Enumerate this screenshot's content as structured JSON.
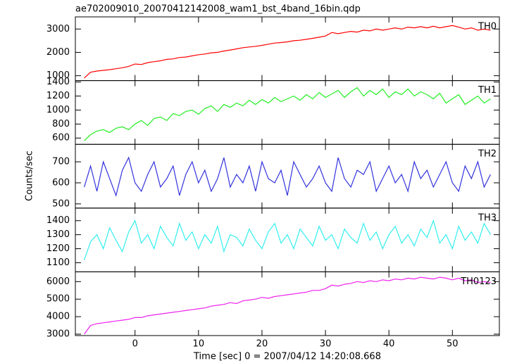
{
  "chart_data": [
    {
      "type": "line",
      "title": "ae702009010_20070412142008_wam1_bst_4band_16bin.qdp",
      "label": "TH0",
      "color": "#ff0000",
      "x": [
        -8,
        -7,
        -6,
        -5,
        -4,
        -3,
        -2,
        -1,
        0,
        1,
        2,
        3,
        4,
        5,
        6,
        7,
        8,
        9,
        10,
        11,
        12,
        13,
        14,
        15,
        16,
        17,
        18,
        19,
        20,
        21,
        22,
        23,
        24,
        25,
        26,
        27,
        28,
        29,
        30,
        31,
        32,
        33,
        34,
        35,
        36,
        37,
        38,
        39,
        40,
        41,
        42,
        43,
        44,
        45,
        46,
        47,
        48,
        49,
        50,
        51,
        52,
        53,
        54,
        55,
        56
      ],
      "values": [
        900,
        1150,
        1200,
        1230,
        1260,
        1300,
        1340,
        1400,
        1500,
        1480,
        1560,
        1600,
        1640,
        1700,
        1720,
        1780,
        1800,
        1850,
        1900,
        1930,
        1980,
        2000,
        2060,
        2100,
        2150,
        2200,
        2230,
        2260,
        2300,
        2350,
        2400,
        2420,
        2450,
        2500,
        2520,
        2560,
        2600,
        2650,
        2700,
        2850,
        2800,
        2850,
        2900,
        2870,
        2950,
        2920,
        3000,
        2950,
        3000,
        3050,
        3000,
        3080,
        3050,
        3100,
        3050,
        3120,
        3050,
        3100,
        3150,
        3080,
        3000,
        3050,
        2950,
        3000,
        2950
      ],
      "xlim": [
        -9.4,
        57.4
      ],
      "xticks": [
        0,
        10,
        20,
        30,
        40,
        50
      ],
      "ylim": [
        790,
        3520
      ],
      "yticks": [
        1000,
        2000,
        3000
      ]
    },
    {
      "type": "line",
      "label": "TH1",
      "color": "#22ee22",
      "x": [
        -8,
        -7,
        -6,
        -5,
        -4,
        -3,
        -2,
        -1,
        0,
        1,
        2,
        3,
        4,
        5,
        6,
        7,
        8,
        9,
        10,
        11,
        12,
        13,
        14,
        15,
        16,
        17,
        18,
        19,
        20,
        21,
        22,
        23,
        24,
        25,
        26,
        27,
        28,
        29,
        30,
        31,
        32,
        33,
        34,
        35,
        36,
        37,
        38,
        39,
        40,
        41,
        42,
        43,
        44,
        45,
        46,
        47,
        48,
        49,
        50,
        51,
        52,
        53,
        54,
        55,
        56
      ],
      "values": [
        560,
        650,
        700,
        720,
        680,
        740,
        760,
        720,
        800,
        850,
        780,
        880,
        900,
        850,
        950,
        920,
        980,
        1000,
        940,
        1020,
        1060,
        980,
        1080,
        1040,
        1100,
        1060,
        1140,
        1080,
        1150,
        1100,
        1180,
        1120,
        1160,
        1200,
        1140,
        1220,
        1160,
        1250,
        1180,
        1230,
        1280,
        1180,
        1260,
        1320,
        1200,
        1280,
        1220,
        1300,
        1180,
        1260,
        1220,
        1300,
        1200,
        1260,
        1220,
        1160,
        1240,
        1100,
        1160,
        1220,
        1080,
        1140,
        1200,
        1100,
        1160
      ],
      "xlim": [
        -9.4,
        57.4
      ],
      "xticks": [
        0,
        10,
        20,
        30,
        40,
        50
      ],
      "ylim": [
        510,
        1420
      ],
      "yticks": [
        600,
        800,
        1000,
        1200,
        1400
      ]
    },
    {
      "type": "line",
      "label": "TH2",
      "ylabel": "Counts/sec",
      "color": "#3333dd",
      "x": [
        -8,
        -7,
        -6,
        -5,
        -4,
        -3,
        -2,
        -1,
        0,
        1,
        2,
        3,
        4,
        5,
        6,
        7,
        8,
        9,
        10,
        11,
        12,
        13,
        14,
        15,
        16,
        17,
        18,
        19,
        20,
        21,
        22,
        23,
        24,
        25,
        26,
        27,
        28,
        29,
        30,
        31,
        32,
        33,
        34,
        35,
        36,
        37,
        38,
        39,
        40,
        41,
        42,
        43,
        44,
        45,
        46,
        47,
        48,
        49,
        50,
        51,
        52,
        53,
        54,
        55,
        56
      ],
      "values": [
        580,
        680,
        560,
        700,
        620,
        540,
        660,
        720,
        600,
        560,
        640,
        700,
        580,
        620,
        680,
        540,
        640,
        700,
        600,
        660,
        560,
        620,
        720,
        580,
        640,
        600,
        680,
        560,
        700,
        620,
        600,
        660,
        540,
        700,
        640,
        580,
        620,
        680,
        600,
        560,
        720,
        620,
        580,
        660,
        640,
        700,
        560,
        620,
        680,
        600,
        640,
        560,
        700,
        620,
        660,
        580,
        640,
        700,
        600,
        560,
        680,
        620,
        700,
        580,
        640
      ],
      "xlim": [
        -9.4,
        57.4
      ],
      "xticks": [
        0,
        10,
        20,
        30,
        40,
        50
      ],
      "ylim": [
        480,
        783
      ],
      "yticks": [
        500,
        600,
        700
      ]
    },
    {
      "type": "line",
      "label": "TH3",
      "color": "#33eeee",
      "x": [
        -8,
        -7,
        -6,
        -5,
        -4,
        -3,
        -2,
        -1,
        0,
        1,
        2,
        3,
        4,
        5,
        6,
        7,
        8,
        9,
        10,
        11,
        12,
        13,
        14,
        15,
        16,
        17,
        18,
        19,
        20,
        21,
        22,
        23,
        24,
        25,
        26,
        27,
        28,
        29,
        30,
        31,
        32,
        33,
        34,
        35,
        36,
        37,
        38,
        39,
        40,
        41,
        42,
        43,
        44,
        45,
        46,
        47,
        48,
        49,
        50,
        51,
        52,
        53,
        54,
        55,
        56
      ],
      "values": [
        1120,
        1250,
        1300,
        1200,
        1350,
        1260,
        1180,
        1320,
        1400,
        1240,
        1300,
        1200,
        1360,
        1280,
        1220,
        1380,
        1260,
        1320,
        1200,
        1300,
        1240,
        1360,
        1180,
        1300,
        1280,
        1220,
        1340,
        1260,
        1200,
        1320,
        1380,
        1240,
        1300,
        1200,
        1340,
        1280,
        1220,
        1360,
        1260,
        1300,
        1200,
        1340,
        1280,
        1240,
        1380,
        1260,
        1320,
        1200,
        1300,
        1360,
        1240,
        1300,
        1220,
        1340,
        1280,
        1400,
        1240,
        1300,
        1200,
        1360,
        1260,
        1320,
        1240,
        1380,
        1300
      ],
      "xlim": [
        -9.4,
        57.4
      ],
      "xticks": [
        0,
        10,
        20,
        30,
        40,
        50
      ],
      "ylim": [
        1035,
        1490
      ],
      "yticks": [
        1100,
        1200,
        1300,
        1400
      ]
    },
    {
      "type": "line",
      "label": "TH0123",
      "xlabel": "Time [sec] 0 = 2007/04/12 14:20:08.668",
      "color": "#ee22ee",
      "x": [
        -8,
        -7,
        -6,
        -5,
        -4,
        -3,
        -2,
        -1,
        0,
        1,
        2,
        3,
        4,
        5,
        6,
        7,
        8,
        9,
        10,
        11,
        12,
        13,
        14,
        15,
        16,
        17,
        18,
        19,
        20,
        21,
        22,
        23,
        24,
        25,
        26,
        27,
        28,
        29,
        30,
        31,
        32,
        33,
        34,
        35,
        36,
        37,
        38,
        39,
        40,
        41,
        42,
        43,
        44,
        45,
        46,
        47,
        48,
        49,
        50,
        51,
        52,
        53,
        54,
        55,
        56
      ],
      "values": [
        3000,
        3500,
        3600,
        3650,
        3700,
        3750,
        3800,
        3850,
        3950,
        3950,
        4050,
        4100,
        4150,
        4200,
        4250,
        4300,
        4350,
        4400,
        4450,
        4500,
        4600,
        4650,
        4700,
        4800,
        4750,
        4900,
        4950,
        5000,
        5100,
        5050,
        5150,
        5200,
        5250,
        5300,
        5350,
        5400,
        5500,
        5500,
        5600,
        5800,
        5750,
        5850,
        5900,
        6000,
        5950,
        6050,
        6000,
        6100,
        6050,
        6150,
        6100,
        6200,
        6150,
        6250,
        6200,
        6150,
        6250,
        6200,
        6100,
        6200,
        6050,
        6100,
        5950,
        6000,
        5950
      ],
      "xlim": [
        -9.4,
        57.4
      ],
      "xticks": [
        0,
        10,
        20,
        30,
        40,
        50
      ],
      "ylim": [
        2920,
        6560
      ],
      "yticks": [
        3000,
        4000,
        5000,
        6000
      ]
    }
  ]
}
